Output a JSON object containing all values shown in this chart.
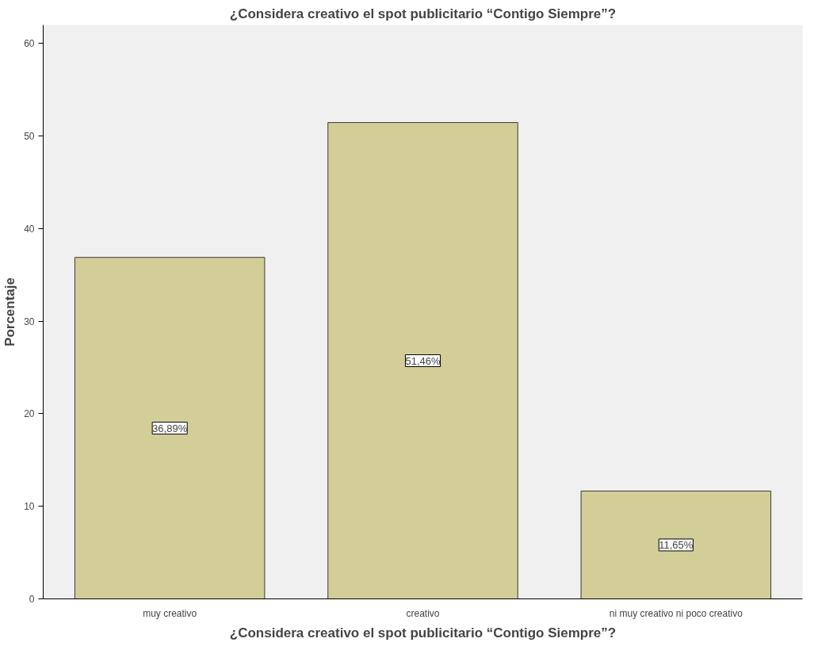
{
  "chart_data": {
    "type": "bar",
    "title": "¿Considera creativo el spot publicitario “Contigo Siempre”?",
    "xlabel": "¿Considera creativo el spot publicitario “Contigo Siempre”?",
    "ylabel": "Porcentaje",
    "categories": [
      "muy creativo",
      "creativo",
      "ni muy creativo ni poco creativo"
    ],
    "values": [
      36.89,
      51.46,
      11.65
    ],
    "value_labels": [
      "36,89%",
      "51,46%",
      "11,65%"
    ],
    "color": "#d3ce97",
    "ylim": [
      0,
      62
    ],
    "yticks": [
      0,
      10,
      20,
      30,
      40,
      50,
      60
    ],
    "grid": false
  }
}
